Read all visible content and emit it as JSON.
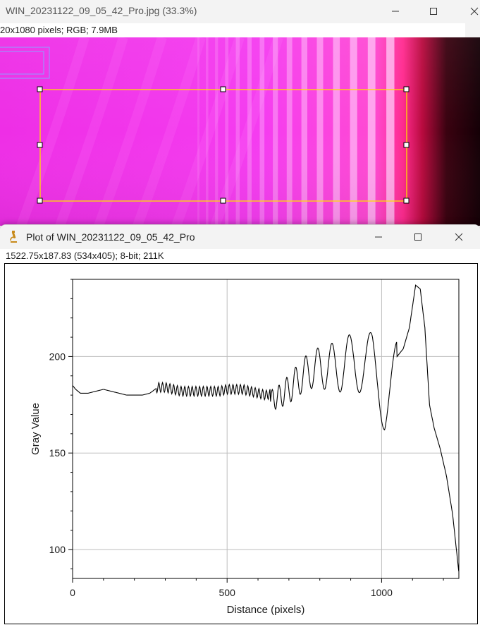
{
  "image_window": {
    "title": "WIN_20231122_09_05_42_Pro.jpg (33.3%)",
    "info": "20x1080 pixels; RGB; 7.9MB",
    "controls": {
      "minimize_icon": "minimize-icon",
      "maximize_icon": "maximize-icon",
      "close_icon": "close-icon"
    }
  },
  "plot_window": {
    "title": "Plot of WIN_20231122_09_05_42_Pro",
    "info": "1522.75x187.83   (534x405); 8-bit; 211K",
    "app_icon": "imagej-microscope-icon",
    "controls": {
      "minimize_icon": "minimize-icon",
      "maximize_icon": "maximize-icon",
      "close_icon": "close-icon"
    }
  },
  "chart_data": {
    "type": "line",
    "title": "",
    "xlabel": "Distance (pixels)",
    "ylabel": "Gray Value",
    "xlim": [
      0,
      1250
    ],
    "ylim": [
      85,
      240
    ],
    "xticks": [
      0,
      500,
      1000
    ],
    "yticks": [
      100,
      150,
      200
    ],
    "grid": true,
    "line_color": "#000000",
    "series": [
      {
        "name": "",
        "x": [
          0,
          10,
          25,
          50,
          75,
          100,
          125,
          150,
          175,
          200,
          225,
          250,
          275,
          300,
          325,
          350,
          375,
          400,
          425,
          450,
          475,
          500,
          525,
          550,
          575,
          600,
          625,
          650,
          670,
          690,
          710,
          730,
          750,
          770,
          790,
          810,
          830,
          850,
          870,
          890,
          910,
          930,
          950,
          970,
          990,
          1010,
          1030,
          1050,
          1070,
          1090,
          1110,
          1125,
          1140,
          1155,
          1170,
          1190,
          1210,
          1230,
          1250
        ],
        "values": [
          185,
          183,
          181,
          181,
          182,
          183,
          182,
          181,
          180,
          180,
          180,
          181,
          184,
          184,
          183,
          182,
          182,
          182,
          182,
          182,
          182,
          183,
          183,
          183,
          182,
          181,
          180,
          181,
          183,
          186,
          189,
          193,
          196,
          199,
          200,
          201,
          202,
          202,
          203,
          205,
          207,
          206,
          205,
          206,
          200,
          190,
          195,
          200,
          204,
          215,
          237,
          235,
          215,
          175,
          163,
          152,
          138,
          118,
          88
        ]
      }
    ]
  }
}
